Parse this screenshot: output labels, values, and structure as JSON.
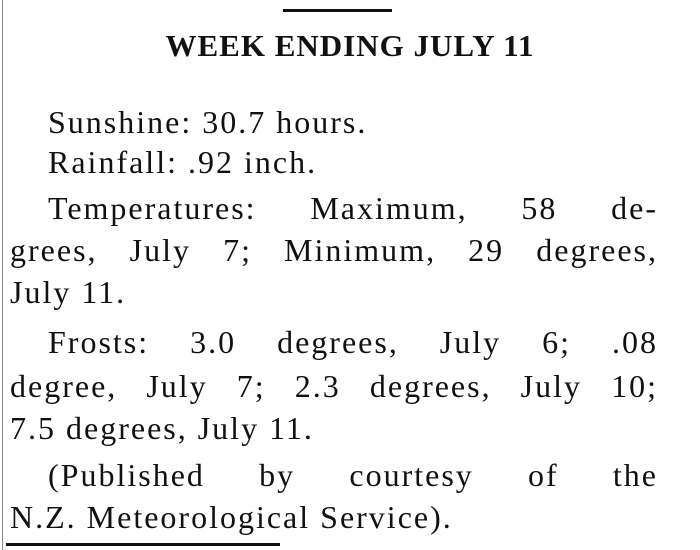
{
  "title": "WEEK ENDING JULY 11",
  "paragraphs": [
    {
      "lines": [
        "Sunshine: 30.7 hours."
      ]
    },
    {
      "lines": [
        "Rainfall: .92 inch."
      ]
    },
    {
      "lines": [
        "Temperatures: Maximum, 58 de-",
        "grees, July 7; Minimum, 29 degrees,",
        "July 11."
      ]
    },
    {
      "lines": [
        "Frosts: 3.0 degrees, July 6; .08",
        "degree, July 7; 2.3 degrees, July 10;",
        "7.5 degrees, July 11."
      ]
    },
    {
      "lines": [
        "(Published by courtesy of the",
        "N.Z. Meteorological Service)."
      ]
    }
  ]
}
